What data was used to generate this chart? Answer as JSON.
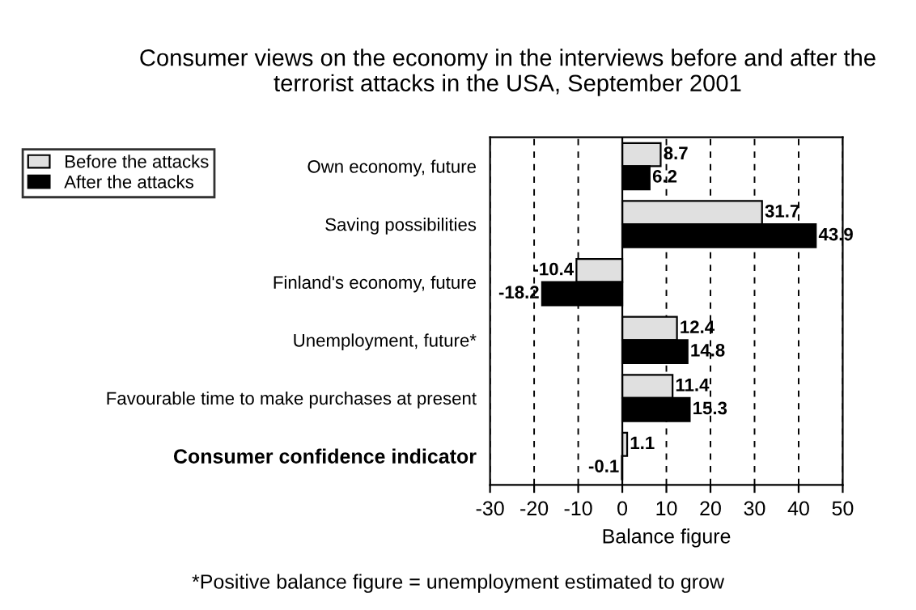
{
  "chart_data": {
    "type": "bar",
    "orientation": "horizontal",
    "title": "Consumer views on the economy in the interviews before and after the terrorist attacks in the USA, September 2001",
    "categories": [
      "Own economy, future",
      "Saving possibilities",
      "Finland's economy, future",
      "Unemployment, future*",
      "Favourable time to make purchases at present",
      "Consumer confidence indicator"
    ],
    "series": [
      {
        "name": "Before the attacks",
        "color": "#e0e0e0",
        "values": [
          8.7,
          31.7,
          -10.4,
          12.4,
          11.4,
          1.1
        ]
      },
      {
        "name": "After the attacks",
        "color": "#000000",
        "values": [
          6.2,
          43.9,
          -18.2,
          14.8,
          15.3,
          -0.1
        ]
      }
    ],
    "xlabel": "Balance figure",
    "xlim": [
      -30,
      50
    ],
    "xticks": [
      -30,
      -20,
      -10,
      0,
      10,
      20,
      30,
      40,
      50
    ],
    "grid": "x",
    "legend": "top left",
    "data_labels": true,
    "annotations": [
      "*Positive balance figure = unemployment estimated to grow"
    ]
  }
}
